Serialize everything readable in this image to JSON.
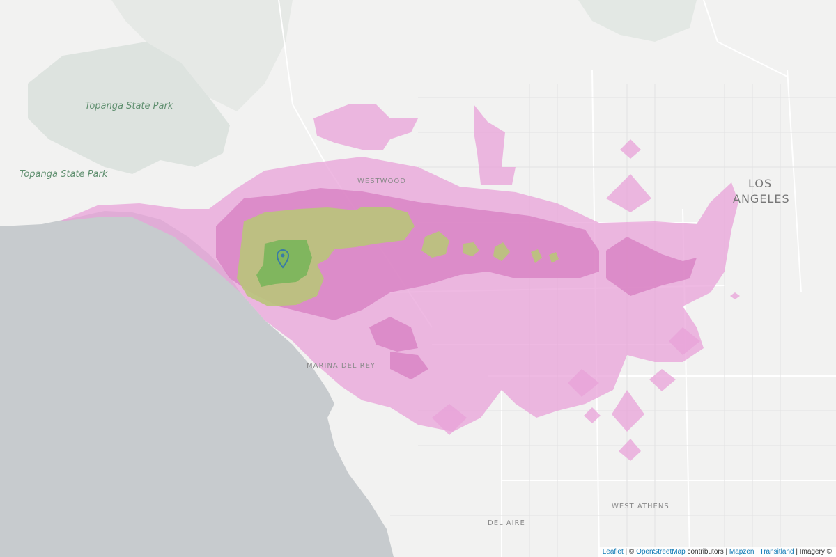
{
  "map": {
    "labels": {
      "topanga_1": "Topanga State Park",
      "topanga_2": "Topanga State Park",
      "westwood": "WESTWOOD",
      "los": "LOS",
      "angeles": "ANGELES",
      "marina_del_rey": "MARINA DEL REY",
      "west_athens": "WEST ATHENS",
      "del_aire": "DEL AIRE"
    },
    "colors": {
      "ocean": "#c7cbce",
      "land": "#f2f2f1",
      "park": "#dde3df",
      "isochrone_far": "#e8a2d8",
      "isochrone_mid": "#d57bbf",
      "isochrone_near": "#b9c47a",
      "isochrone_nearest": "#79b55a",
      "marker": "#3a7ca5"
    },
    "marker_icon": "map-pin-icon"
  },
  "attribution": {
    "leaflet": "Leaflet",
    "sep1": " | © ",
    "osm": "OpenStreetMap",
    "contributors": " contributors | ",
    "mapzen": "Mapzen",
    "sep2": " | ",
    "transitland": "Transitland",
    "imagery": " | Imagery ©"
  }
}
